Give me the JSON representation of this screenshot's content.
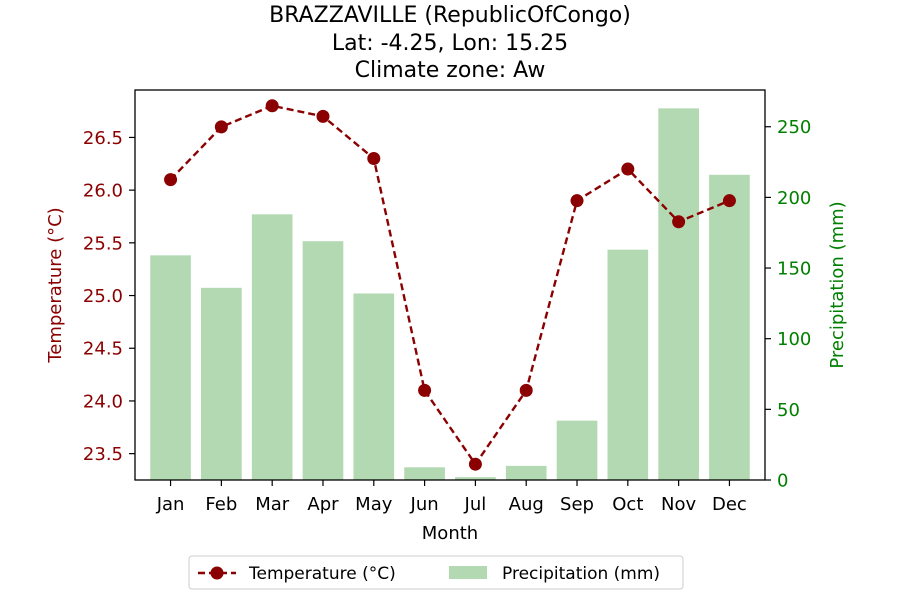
{
  "chart_data": {
    "type": "bar+line",
    "title_lines": [
      "BRAZZAVILLE (RepublicOfCongo)",
      "Lat: -4.25, Lon: 15.25",
      "Climate zone: Aw"
    ],
    "xlabel": "Month",
    "y_left_label": "Temperature (°C)",
    "y_right_label": "Precipitation (mm)",
    "categories": [
      "Jan",
      "Feb",
      "Mar",
      "Apr",
      "May",
      "Jun",
      "Jul",
      "Aug",
      "Sep",
      "Oct",
      "Nov",
      "Dec"
    ],
    "temperature": {
      "name": "Temperature (°C)",
      "values": [
        26.1,
        26.6,
        26.8,
        26.7,
        26.3,
        24.1,
        23.4,
        24.1,
        25.9,
        26.2,
        25.7,
        25.9
      ],
      "ylim": [
        23.25,
        26.95
      ],
      "ticks": [
        "23.5",
        "24.0",
        "24.5",
        "25.0",
        "25.5",
        "26.0",
        "26.5"
      ],
      "color": "#8b0000"
    },
    "precipitation": {
      "name": "Precipitation (mm)",
      "values": [
        159,
        136,
        188,
        169,
        132,
        9,
        2,
        10,
        42,
        163,
        263,
        216
      ],
      "ylim": [
        0,
        276
      ],
      "ticks": [
        "0",
        "50",
        "100",
        "150",
        "200",
        "250"
      ],
      "color": "#b2d9b2",
      "axis_color": "#008000"
    },
    "legend": {
      "position": "bottom-center",
      "items": [
        "Temperature (°C)",
        "Precipitation (mm)"
      ]
    }
  }
}
